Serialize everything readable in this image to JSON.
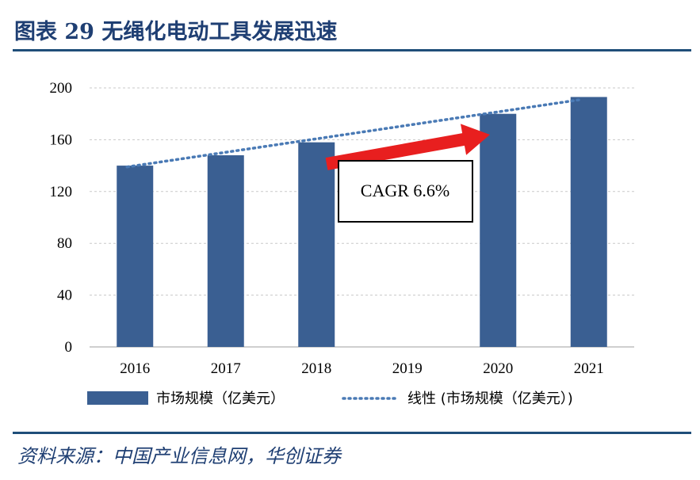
{
  "title": "图表 29 无绳化电动工具发展迅速",
  "source": "资料来源：中国产业信息网，华创证券",
  "colors": {
    "bar": "#3a5f92",
    "trend": "#4a7ab5",
    "arrow": "#e81f1f",
    "accent": "#1f4e79"
  },
  "chart_data": {
    "type": "bar",
    "categories": [
      "2016",
      "2017",
      "2018",
      "2019",
      "2020",
      "2021"
    ],
    "series": [
      {
        "name": "市场规模（亿美元）",
        "values": [
          140,
          148,
          158,
          null,
          180,
          193
        ]
      }
    ],
    "trendline": {
      "name": "线性 (市场规模（亿美元）)",
      "start": 139,
      "end": 191
    },
    "ylim": [
      0,
      200
    ],
    "yticks": [
      0,
      40,
      80,
      120,
      160,
      200
    ],
    "grid": true,
    "legend_position": "bottom",
    "annotation": "CAGR 6.6%"
  }
}
